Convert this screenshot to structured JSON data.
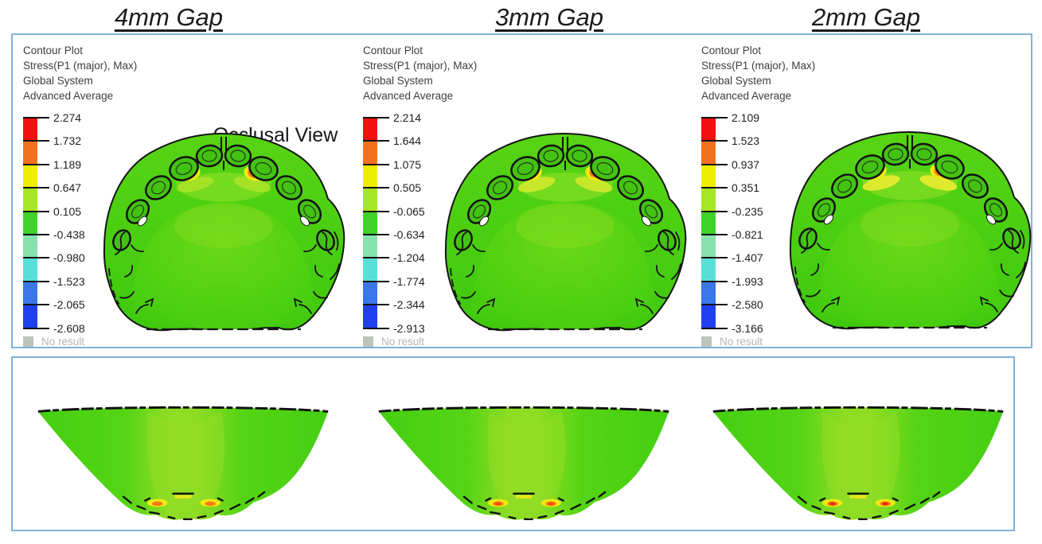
{
  "figure": {
    "titles": [
      "4mm Gap",
      "3mm Gap",
      "2mm Gap"
    ],
    "view_label": "Occlusal View"
  },
  "colors": {
    "frame_border": "#7fb3da",
    "title_text": "#1b1b1b",
    "legend_text": "#3d3d3d",
    "legend_bands": [
      "#f01010",
      "#f2711f",
      "#eeee02",
      "#a4e722",
      "#3fd32a",
      "#86e3ab",
      "#57e0d8",
      "#3a77e8",
      "#2040f0"
    ],
    "no_result_swatch": "#bdc3bd",
    "no_result_text": "#b5b5b5",
    "model_green": "#4ccf10",
    "model_highlight": "#8edc24",
    "stress_yellow": "#f2ea10",
    "stress_orange": "#f08018"
  },
  "panels": [
    {
      "gap_label": "4mm Gap",
      "header_lines": [
        "Contour Plot",
        "Stress(P1 (major), Max)",
        "Global System",
        "Advanced Average"
      ],
      "legend_values": [
        "2.274",
        "1.732",
        "1.189",
        "0.647",
        "0.105",
        "-0.438",
        "-0.980",
        "-1.523",
        "-2.065",
        "-2.608"
      ],
      "no_result_label": "No result",
      "hotspot": {
        "core_color": "#f07d14",
        "streak_opacity": "0.45"
      }
    },
    {
      "gap_label": "3mm Gap",
      "header_lines": [
        "Contour Plot",
        "Stress(P1 (major), Max)",
        "Global System",
        "Advanced Average"
      ],
      "legend_values": [
        "2.214",
        "1.644",
        "1.075",
        "0.505",
        "-0.065",
        "-0.634",
        "-1.204",
        "-1.774",
        "-2.344",
        "-2.913"
      ],
      "no_result_label": "No result",
      "hotspot": {
        "core_color": "#ee5210",
        "streak_opacity": "0.8"
      }
    },
    {
      "gap_label": "2mm Gap",
      "header_lines": [
        "Contour Plot",
        "Stress(P1 (major), Max)",
        "Global System",
        "Advanced Average"
      ],
      "legend_values": [
        "2.109",
        "1.523",
        "0.937",
        "0.351",
        "-0.235",
        "-0.821",
        "-1.407",
        "-1.993",
        "-2.580",
        "-3.166"
      ],
      "no_result_label": "No result",
      "hotspot": {
        "core_color": "#ea2c0c",
        "streak_opacity": "1"
      }
    }
  ],
  "chart_data": [
    {
      "type": "heatmap",
      "title": "4mm Gap",
      "view_top_row": "Occlusal View",
      "quantity": "Stress(P1 (major), Max)",
      "coordinate_system": "Global System",
      "averaging": "Advanced Average",
      "legend_ticks": [
        2.274,
        1.732,
        1.189,
        0.647,
        0.105,
        -0.438,
        -0.98,
        -1.523,
        -2.065,
        -2.608
      ],
      "legend_range": [
        -2.608,
        2.274
      ],
      "legend_band_colors": [
        "#f01010",
        "#f2711f",
        "#eeee02",
        "#a4e722",
        "#3fd32a",
        "#86e3ab",
        "#57e0d8",
        "#3a77e8",
        "#2040f0"
      ],
      "no_result_entry": "No result"
    },
    {
      "type": "heatmap",
      "title": "3mm Gap",
      "view_top_row": "Occlusal View",
      "quantity": "Stress(P1 (major), Max)",
      "coordinate_system": "Global System",
      "averaging": "Advanced Average",
      "legend_ticks": [
        2.214,
        1.644,
        1.075,
        0.505,
        -0.065,
        -0.634,
        -1.204,
        -1.774,
        -2.344,
        -2.913
      ],
      "legend_range": [
        -2.913,
        2.214
      ],
      "legend_band_colors": [
        "#f01010",
        "#f2711f",
        "#eeee02",
        "#a4e722",
        "#3fd32a",
        "#86e3ab",
        "#57e0d8",
        "#3a77e8",
        "#2040f0"
      ],
      "no_result_entry": "No result"
    },
    {
      "type": "heatmap",
      "title": "2mm Gap",
      "view_top_row": "Occlusal View",
      "quantity": "Stress(P1 (major), Max)",
      "coordinate_system": "Global System",
      "averaging": "Advanced Average",
      "legend_ticks": [
        2.109,
        1.523,
        0.937,
        0.351,
        -0.235,
        -0.821,
        -1.407,
        -1.993,
        -2.58,
        -3.166
      ],
      "legend_range": [
        -3.166,
        2.109
      ],
      "legend_band_colors": [
        "#f01010",
        "#f2711f",
        "#eeee02",
        "#a4e722",
        "#3fd32a",
        "#86e3ab",
        "#57e0d8",
        "#3a77e8",
        "#2040f0"
      ],
      "no_result_entry": "No result"
    }
  ]
}
